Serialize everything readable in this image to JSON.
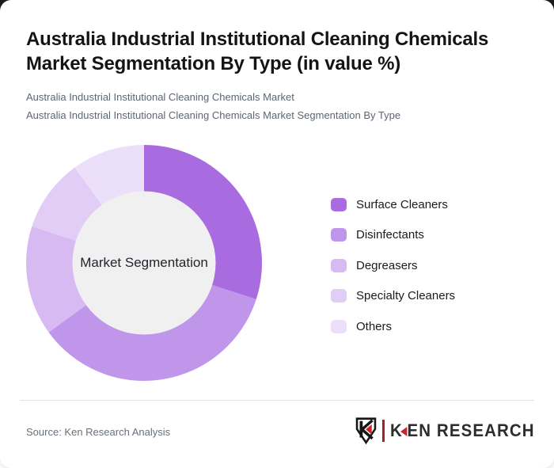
{
  "header": {
    "title_lines": [
      "Australia Industrial Institutional Cleaning Chemicals",
      "Market Segmentation By Type (in value %)"
    ],
    "subtitle_lines": [
      "Australia Industrial Institutional Cleaning Chemicals Market",
      "Australia Industrial Institutional Cleaning Chemicals Market Segmentation By Type"
    ]
  },
  "chart_data": {
    "type": "pie",
    "variant": "donut",
    "title": "Australia Industrial Institutional Cleaning Chemicals Market Segmentation By Type (in value %)",
    "center_label": "Market Segmentation",
    "categories": [
      "Surface Cleaners",
      "Disinfectants",
      "Degreasers",
      "Specialty Cleaners",
      "Others"
    ],
    "values": [
      30,
      35,
      15,
      10,
      10
    ],
    "unit": "percent of value",
    "colors": [
      "#a86ce0",
      "#c096ea",
      "#d7baf2",
      "#e1cdf6",
      "#ecdffa"
    ],
    "center_hole_color": "#f0f0f0",
    "start_angle_deg": 0,
    "direction": "clockwise",
    "legend_position": "right",
    "data_labels_shown": false
  },
  "footer": {
    "source": "Source: Ken Research Analysis",
    "logo": {
      "icon": "ken-research-shield-icon",
      "brand_k": "K",
      "brand_rest": "EN RESEARCH",
      "accent_color": "#c9252b",
      "bar_color": "#9e2227",
      "text_color": "#2d2d2f"
    }
  }
}
